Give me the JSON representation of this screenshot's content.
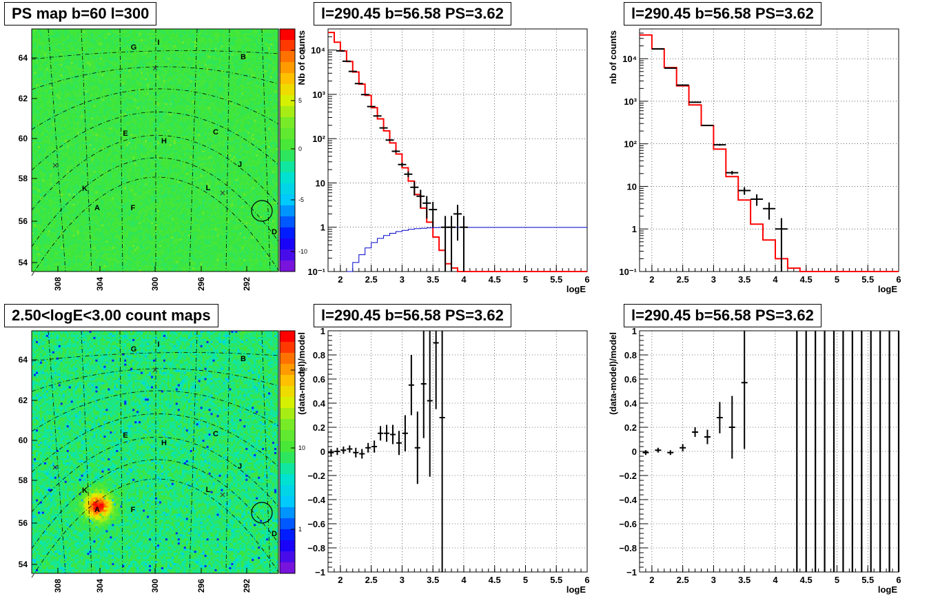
{
  "colors": {
    "map_green": "#44e63c",
    "model_red": "#ff0000",
    "exposure_blue": "#0000cc",
    "data_black": "#000000"
  },
  "panels": {
    "ps_map": {
      "title": "PS map b=60 l=300",
      "colorbar_ticks": [
        "10",
        "5",
        "0",
        "-5",
        "-10"
      ],
      "x_ticks": [
        "308",
        "304",
        "300",
        "296",
        "292"
      ],
      "y_ticks": [
        "64",
        "62",
        "60",
        "58",
        "56",
        "54"
      ],
      "sources": [
        "G",
        "I",
        "B",
        "E",
        "H",
        "C",
        "J",
        "K",
        "L",
        "A",
        "F",
        "D"
      ]
    },
    "count_map": {
      "title": "2.50<logE<3.00 count maps",
      "colorbar_ticks": [
        "10²",
        "10",
        "1"
      ],
      "x_ticks": [
        "308",
        "304",
        "300",
        "296",
        "292"
      ],
      "y_ticks": [
        "64",
        "62",
        "60",
        "58",
        "56",
        "54"
      ],
      "sources": [
        "G",
        "I",
        "B",
        "E",
        "H",
        "C",
        "J",
        "K",
        "L",
        "A",
        "F",
        "D"
      ]
    },
    "spectrum_left": {
      "title": "l=290.45 b=56.58 PS=3.62",
      "xlabel": "logE",
      "ylabel": "Nb of counts",
      "y_ticks": [
        "10⁴",
        "10³",
        "10²",
        "10",
        "1",
        "10⁻¹"
      ],
      "x_ticks": [
        "2",
        "2.5",
        "3",
        "3.5",
        "4",
        "4.5",
        "5",
        "5.5",
        "6"
      ]
    },
    "spectrum_right": {
      "title": "l=290.45 b=56.58 PS=3.62",
      "xlabel": "logE",
      "ylabel": "nb of counts",
      "y_ticks": [
        "10⁴",
        "10³",
        "10²",
        "10",
        "1",
        "10⁻¹"
      ],
      "x_ticks": [
        "2",
        "2.5",
        "3",
        "3.5",
        "4",
        "4.5",
        "5",
        "5.5",
        "6"
      ]
    },
    "residual_left": {
      "title": "l=290.45 b=56.58 PS=3.62",
      "xlabel": "logE",
      "ylabel": "(data-model)/model",
      "y_ticks": [
        "1",
        "0.8",
        "0.6",
        "0.4",
        "0.2",
        "0",
        "−0.2",
        "−0.4",
        "−0.6",
        "−0.8",
        "−1"
      ],
      "x_ticks": [
        "2",
        "2.5",
        "3",
        "3.5",
        "4",
        "4.5",
        "5",
        "5.5",
        "6"
      ]
    },
    "residual_right": {
      "title": "l=290.45 b=56.58 PS=3.62",
      "xlabel": "logE",
      "ylabel": "(data-model)/model",
      "y_ticks": [
        "1",
        "0.8",
        "0.6",
        "0.4",
        "0.2",
        "0",
        "−0.2",
        "−0.4",
        "−0.6",
        "−0.8",
        "−1"
      ],
      "x_ticks": [
        "2",
        "2.5",
        "3",
        "3.5",
        "4",
        "4.5",
        "5",
        "5.5",
        "6"
      ]
    }
  },
  "chart_data": [
    {
      "type": "heatmap",
      "title": "PS map b=60 l=300",
      "xlabel": "",
      "ylabel": "",
      "xlim": [
        310,
        289
      ],
      "ylim": [
        53.6,
        65.2
      ],
      "zlim": [
        -12,
        12
      ],
      "circle_source": "D"
    },
    {
      "type": "heatmap",
      "title": "2.50<logE<3.00 count maps",
      "xlabel": "",
      "ylabel": "",
      "xlim": [
        310,
        289
      ],
      "ylim": [
        53.6,
        65.2
      ],
      "z_scale": "log",
      "bright_sources": [
        "A",
        "B"
      ],
      "circle_source": "D"
    },
    {
      "type": "line",
      "title": "l=290.45 b=56.58 PS=3.62",
      "xlabel": "logE",
      "ylabel": "Nb of counts",
      "xlim": [
        1.8,
        6
      ],
      "ylim": [
        0.1,
        30000
      ],
      "y_scale": "log",
      "series": [
        {
          "name": "model",
          "style": "step",
          "x": [
            1.8,
            1.9,
            2.0,
            2.1,
            2.2,
            2.3,
            2.4,
            2.5,
            2.6,
            2.7,
            2.8,
            2.9,
            3.0,
            3.1,
            3.2,
            3.3,
            3.4,
            3.5,
            3.6,
            3.7,
            3.8,
            3.9,
            4.0,
            4.1,
            6.0
          ],
          "y": [
            25000,
            15000,
            9500,
            5500,
            3200,
            1700,
            950,
            500,
            280,
            150,
            80,
            45,
            22,
            11,
            5.5,
            2.7,
            1.3,
            0.6,
            0.3,
            0.15,
            0.12,
            0.1,
            0.1,
            0.1,
            0.1
          ]
        },
        {
          "name": "exposure",
          "style": "step",
          "x": [
            2.1,
            2.2,
            2.3,
            2.4,
            2.5,
            2.6,
            2.7,
            2.8,
            2.9,
            3.0,
            3.1,
            3.2,
            3.3,
            3.4,
            3.5,
            3.6,
            6.0
          ],
          "y": [
            0.1,
            0.16,
            0.24,
            0.34,
            0.45,
            0.56,
            0.65,
            0.73,
            0.8,
            0.85,
            0.9,
            0.93,
            0.95,
            0.97,
            0.98,
            0.99,
            1.0
          ]
        },
        {
          "name": "data",
          "style": "errorbars",
          "x": [
            2.0,
            2.1,
            2.2,
            2.3,
            2.4,
            2.5,
            2.6,
            2.7,
            2.8,
            2.9,
            3.0,
            3.1,
            3.2,
            3.3,
            3.4,
            3.5,
            3.7,
            3.8,
            3.9,
            4.0
          ],
          "y": [
            9600,
            5600,
            3300,
            1750,
            990,
            530,
            325,
            175,
            93,
            52,
            26,
            15.8,
            8,
            5,
            3.5,
            2.5,
            1,
            1,
            2,
            1
          ],
          "yerr_lo": [
            0.01,
            0.01,
            0.01,
            0.01,
            0.01,
            0.01,
            0.02,
            0.03,
            0.05,
            0.07,
            0.1,
            0.15,
            0.35,
            0.45,
            0.55,
            0.6,
            0.9,
            0.9,
            0.75,
            0.9
          ],
          "yerr_hi": [
            0.01,
            0.01,
            0.01,
            0.01,
            0.01,
            0.01,
            0.02,
            0.03,
            0.05,
            0.07,
            0.1,
            0.15,
            0.35,
            0.4,
            0.45,
            0.5,
            0.8,
            0.8,
            0.6,
            0.8
          ]
        }
      ]
    },
    {
      "type": "line",
      "title": "l=290.45 b=56.58 PS=3.62",
      "xlabel": "logE",
      "ylabel": "nb of counts",
      "xlim": [
        1.8,
        6
      ],
      "ylim": [
        0.1,
        50000
      ],
      "y_scale": "log",
      "series": [
        {
          "name": "model",
          "style": "step",
          "x": [
            1.8,
            2.0,
            2.2,
            2.4,
            2.6,
            2.8,
            3.0,
            3.2,
            3.4,
            3.6,
            3.8,
            4.0,
            4.2,
            4.4,
            6.0
          ],
          "y": [
            36000,
            17000,
            6200,
            2300,
            820,
            270,
            75,
            17,
            4.8,
            1.3,
            0.55,
            0.2,
            0.12,
            0.1,
            0.1
          ]
        },
        {
          "name": "data",
          "style": "errorbars",
          "x": [
            2.1,
            2.3,
            2.5,
            2.7,
            2.9,
            3.1,
            3.3,
            3.5,
            3.7,
            3.9,
            4.1
          ],
          "y": [
            17000,
            6000,
            2400,
            950,
            270,
            95,
            21,
            8,
            5,
            3,
            1
          ],
          "xerr": [
            0.1,
            0.1,
            0.1,
            0.1,
            0.1,
            0.1,
            0.1,
            0.1,
            0.1,
            0.1,
            0.1
          ],
          "yerr_lo": [
            0.01,
            0.01,
            0.01,
            0.02,
            0.03,
            0.05,
            0.1,
            0.2,
            0.3,
            0.45,
            0.9
          ],
          "yerr_hi": [
            0.01,
            0.01,
            0.01,
            0.02,
            0.03,
            0.05,
            0.1,
            0.2,
            0.3,
            0.4,
            0.8
          ]
        }
      ]
    },
    {
      "type": "scatter",
      "title": "l=290.45 b=56.58 PS=3.62",
      "xlabel": "logE",
      "ylabel": "(data-model)/model",
      "xlim": [
        1.8,
        6
      ],
      "ylim": [
        -1,
        1
      ],
      "series": [
        {
          "name": "residuals",
          "style": "errorbars",
          "x": [
            1.85,
            1.95,
            2.05,
            2.15,
            2.25,
            2.35,
            2.45,
            2.55,
            2.65,
            2.75,
            2.85,
            2.95,
            3.05,
            3.15,
            3.25,
            3.35,
            3.45,
            3.55,
            3.65
          ],
          "y": [
            -0.01,
            0.0,
            0.01,
            0.02,
            -0.01,
            -0.02,
            0.03,
            0.04,
            0.15,
            0.15,
            0.14,
            0.07,
            0.15,
            0.55,
            0.03,
            0.56,
            0.42,
            0.9,
            0.28
          ],
          "yerr": [
            0.03,
            0.03,
            0.03,
            0.03,
            0.04,
            0.04,
            0.04,
            0.05,
            0.06,
            0.07,
            0.08,
            0.1,
            0.15,
            0.25,
            0.3,
            0.45,
            0.63,
            0.55,
            1.28
          ]
        }
      ]
    },
    {
      "type": "scatter",
      "title": "l=290.45 b=56.58 PS=3.62",
      "xlabel": "logE",
      "ylabel": "(data-model)/model",
      "xlim": [
        1.8,
        6
      ],
      "ylim": [
        -1,
        1
      ],
      "series": [
        {
          "name": "residuals",
          "style": "errorbars",
          "x": [
            1.9,
            2.1,
            2.3,
            2.5,
            2.7,
            2.9,
            3.1,
            3.3,
            3.5
          ],
          "y": [
            -0.01,
            0.01,
            -0.01,
            0.03,
            0.16,
            0.12,
            0.28,
            0.2,
            0.57
          ],
          "xerr": [
            0.05,
            0.05,
            0.05,
            0.05,
            0.05,
            0.05,
            0.05,
            0.05,
            0.05
          ],
          "yerr": [
            0.02,
            0.02,
            0.02,
            0.03,
            0.04,
            0.06,
            0.13,
            0.26,
            0.55
          ]
        },
        {
          "name": "off-scale",
          "style": "vertical-lines",
          "x": [
            4.35,
            4.5,
            4.65,
            4.8,
            4.95,
            5.1,
            5.25,
            5.4,
            5.55,
            5.7,
            5.85,
            6.0
          ]
        }
      ]
    }
  ]
}
